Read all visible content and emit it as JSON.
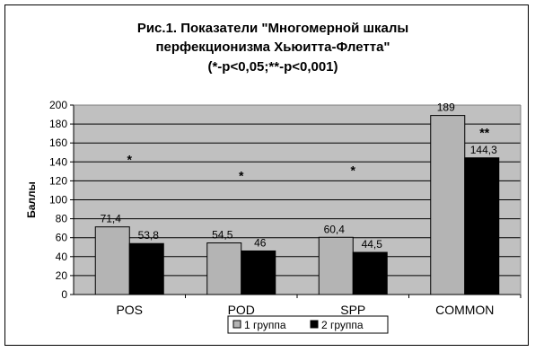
{
  "chart_data": {
    "type": "bar",
    "title": [
      "Рис.1. Показатели \"Многомерной шкалы",
      "перфекционизма Хьюитта-Флетта\"",
      "(*-р<0,05;**-р<0,001)"
    ],
    "ylabel": "Баллы",
    "xlabel": "",
    "categories": [
      "POS",
      "POD",
      "SPP",
      "COMMON"
    ],
    "series": [
      {
        "name": "1 группа",
        "values": [
          71.4,
          54.5,
          60.4,
          189
        ],
        "labels": [
          "71,4",
          "54,5",
          "60,4",
          "189"
        ],
        "color": "#b4b4b4"
      },
      {
        "name": "2 группа",
        "values": [
          53.8,
          46,
          44.5,
          144.3
        ],
        "labels": [
          "53,8",
          "46",
          "44,5",
          "144,3"
        ],
        "color": "#000000"
      }
    ],
    "significance": [
      "*",
      "*",
      "*",
      "**"
    ],
    "ylim": [
      0,
      200
    ],
    "yticks": [
      0,
      20,
      40,
      60,
      80,
      100,
      120,
      140,
      160,
      180,
      200
    ],
    "grid": true,
    "plot_background": "#c0c0c0",
    "legend_position": "bottom"
  }
}
